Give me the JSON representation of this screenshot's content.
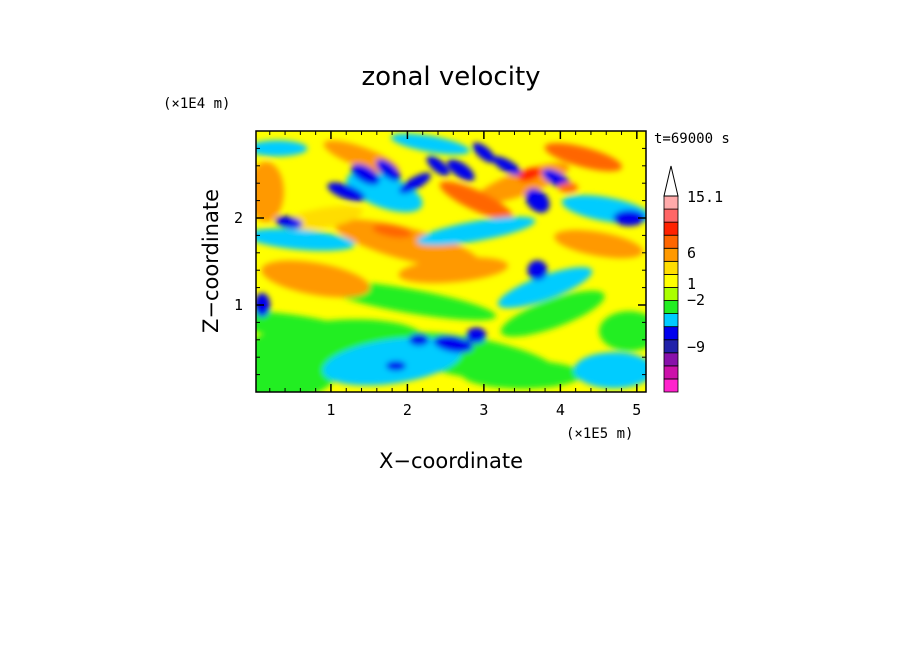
{
  "chart_data": {
    "type": "heatmap",
    "title": "zonal velocity",
    "xlabel": "X−coordinate",
    "ylabel": "Z−coordinate",
    "x_unit_label": "(×1E5 m)",
    "y_unit_label": "(×1E4 m)",
    "time_label": "t=69000 s",
    "xlim": [
      0.02,
      5.12
    ],
    "ylim": [
      0,
      3.0
    ],
    "x_ticks": [
      1,
      2,
      3,
      4,
      5
    ],
    "y_ticks": [
      1,
      2
    ],
    "colorbar": {
      "levels_from_bottom": [
        {
          "color": "#ff22cc"
        },
        {
          "color": "#cc11aa"
        },
        {
          "color": "#8811aa"
        },
        {
          "color": "#2222aa"
        },
        {
          "color": "#0000ee"
        },
        {
          "color": "#00ccff"
        },
        {
          "color": "#22ee22"
        },
        {
          "color": "#aaff00"
        },
        {
          "color": "#ffff00"
        },
        {
          "color": "#ffdd00"
        },
        {
          "color": "#ff9900"
        },
        {
          "color": "#ff6600"
        },
        {
          "color": "#ff2200"
        },
        {
          "color": "#ff6666"
        },
        {
          "color": "#ffaaaa"
        },
        {
          "color": "#ffffff"
        }
      ],
      "tick_labels": [
        "15.1",
        "6",
        "1",
        "−2",
        "−9"
      ]
    }
  }
}
